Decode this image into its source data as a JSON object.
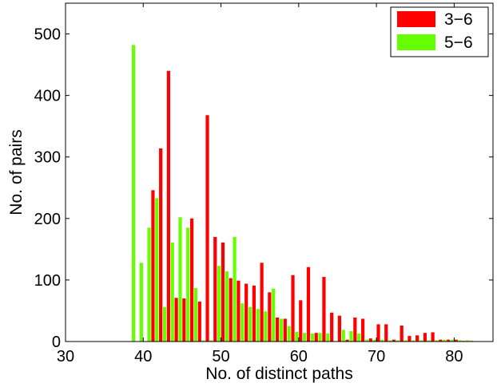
{
  "chart_data": {
    "type": "bar",
    "xlabel": "No. of distinct paths",
    "ylabel": "No. of pairs",
    "xlim": [
      30,
      85
    ],
    "ylim": [
      0,
      550
    ],
    "xticks": [
      30,
      40,
      50,
      60,
      70,
      80
    ],
    "yticks": [
      0,
      100,
      200,
      300,
      400,
      500
    ],
    "grid": false,
    "legend_position": "top-right",
    "x": [
      30,
      31,
      32,
      33,
      34,
      35,
      36,
      37,
      38,
      39,
      40,
      41,
      42,
      43,
      44,
      45,
      46,
      47,
      48,
      49,
      50,
      51,
      52,
      53,
      54,
      55,
      56,
      57,
      58,
      59,
      60,
      61,
      62,
      63,
      64,
      65,
      66,
      67,
      68,
      69,
      70,
      71,
      72,
      73,
      74,
      75,
      76,
      77,
      78,
      79,
      80,
      81,
      82
    ],
    "series": [
      {
        "name": "3−6",
        "color": "#ff0000",
        "values": [
          0,
          0,
          0,
          0,
          0,
          0,
          0,
          0,
          0,
          0,
          0,
          246,
          314,
          440,
          71,
          70,
          200,
          65,
          368,
          170,
          161,
          103,
          99,
          94,
          91,
          128,
          80,
          39,
          37,
          108,
          67,
          121,
          14,
          105,
          47,
          42,
          3,
          39,
          37,
          5,
          28,
          28,
          3,
          26,
          9,
          10,
          14,
          15,
          3,
          3,
          3,
          1,
          1
        ]
      },
      {
        "name": "5−6",
        "color": "#66ff00",
        "values": [
          0,
          0,
          0,
          0,
          0,
          0,
          0,
          0,
          0,
          482,
          128,
          185,
          233,
          56,
          161,
          202,
          185,
          87,
          2,
          2,
          123,
          114,
          170,
          62,
          56,
          53,
          49,
          86,
          37,
          25,
          16,
          14,
          13,
          14,
          13,
          0,
          19,
          17,
          13,
          3,
          3,
          3,
          2,
          2,
          2,
          2,
          2,
          2,
          2,
          3,
          3,
          2,
          2
        ]
      }
    ]
  }
}
